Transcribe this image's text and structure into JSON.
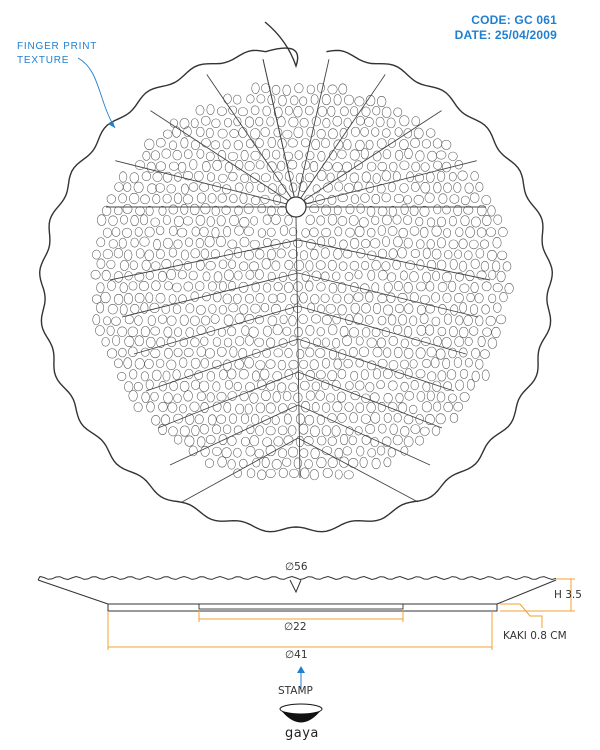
{
  "header": {
    "code": "CODE: GC 061",
    "date": "DATE: 25/04/2009"
  },
  "callout": {
    "line1": "FINGER PRINT",
    "line2": "TEXTURE"
  },
  "dimensions": {
    "top_diameter": "∅56",
    "base_inner_diameter": "∅22",
    "base_outer_diameter": "∅41",
    "height": "H 3.5",
    "kaki": "KAKI 0.8 CM"
  },
  "stamp": {
    "label": "STAMP",
    "brand": "gaya",
    "logo_icon": "gaya-bowl-logo-icon"
  },
  "colors": {
    "accent": "#1f7fd0",
    "dimension_line": "#f0a030",
    "outline": "#333333"
  }
}
